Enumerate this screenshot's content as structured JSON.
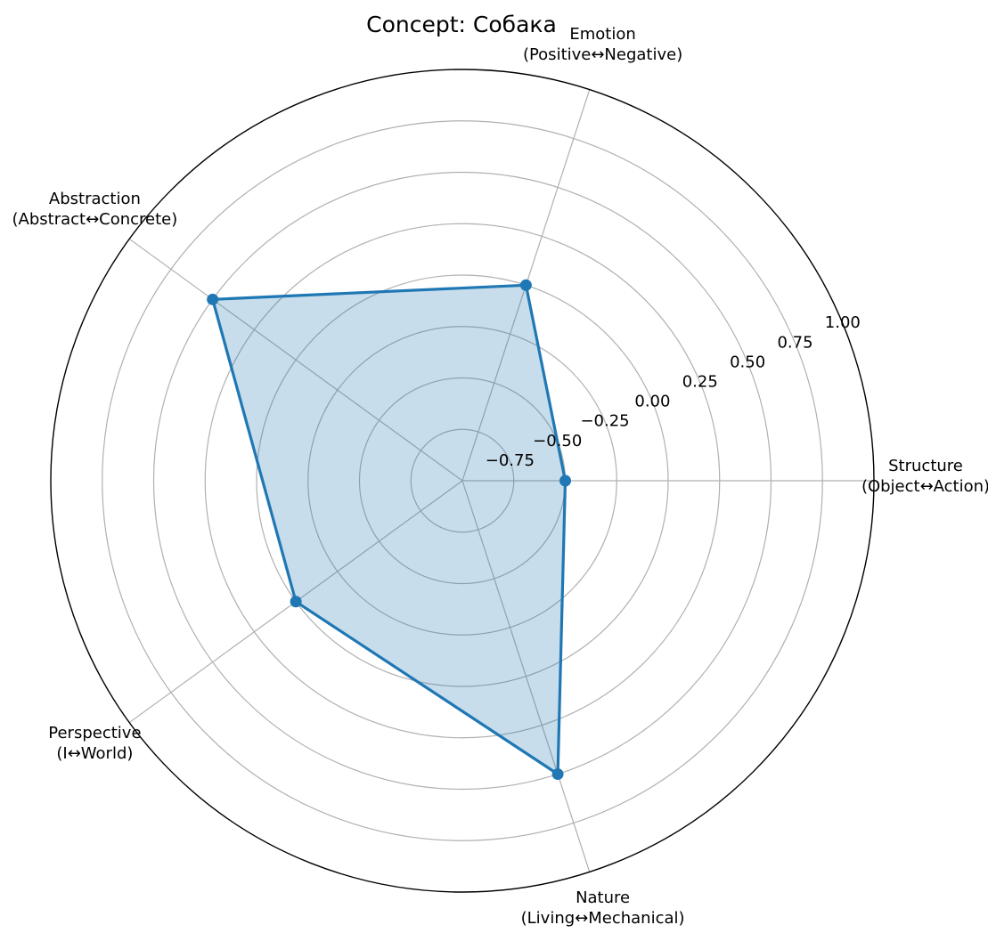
{
  "chart_data": {
    "type": "radar",
    "title": "Concept: Собака",
    "axes": [
      {
        "line1": "Structure",
        "line2": "(Object↔Action)"
      },
      {
        "line1": "Emotion",
        "line2": "(Positive↔Negative)"
      },
      {
        "line1": "Abstraction",
        "line2": "(Abstract↔Concrete)"
      },
      {
        "line1": "Perspective",
        "line2": "(I↔World)"
      },
      {
        "line1": "Nature",
        "line2": "(Living↔Mechanical)"
      }
    ],
    "series": [
      {
        "values": [
          -0.5,
          0.0,
          0.5,
          0.0,
          0.5
        ]
      }
    ],
    "rlim": [
      -1.0,
      1.0
    ],
    "ticks": [
      -0.75,
      -0.5,
      -0.25,
      0.0,
      0.25,
      0.5,
      0.75,
      1.0
    ],
    "tick_labels": [
      "−0.75",
      "−0.50",
      "−0.25",
      "0.00",
      "0.25",
      "0.50",
      "0.75",
      "1.00"
    ],
    "grid": true,
    "colors": {
      "series": "#1f77b4",
      "grid": "#b0b0b0"
    }
  }
}
